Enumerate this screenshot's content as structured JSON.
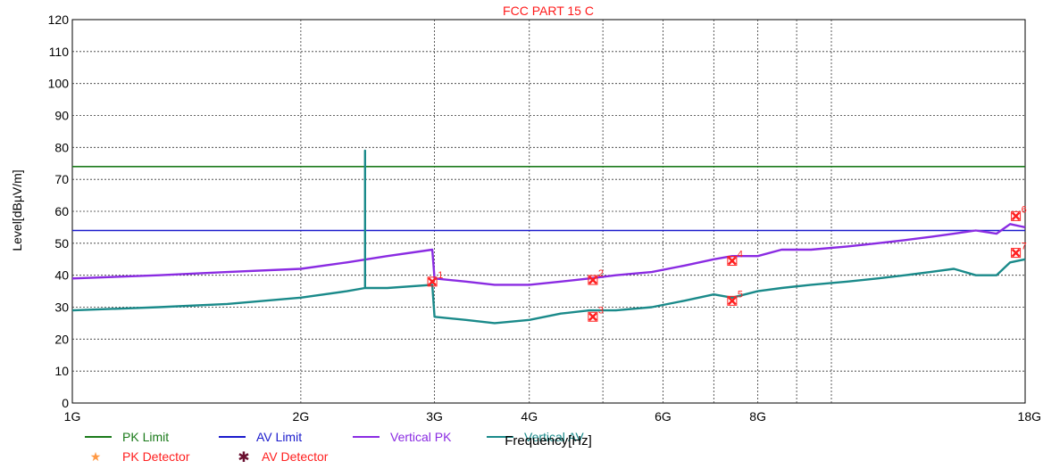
{
  "chart_data": {
    "type": "line",
    "title": "FCC PART 15 C",
    "title_color": "#ff1a1a",
    "xlabel": "Frequency[Hz]",
    "ylabel": "Level[dBµV/m]",
    "x_scale": "log",
    "xlim": [
      1,
      18
    ],
    "ylim": [
      0,
      120
    ],
    "y_ticks": [
      0,
      10,
      20,
      30,
      40,
      50,
      60,
      70,
      80,
      90,
      100,
      110,
      120
    ],
    "x_ticks": [
      {
        "value": 1,
        "label": "1G"
      },
      {
        "value": 2,
        "label": "2G"
      },
      {
        "value": 3,
        "label": "3G"
      },
      {
        "value": 4,
        "label": "4G"
      },
      {
        "value": 6,
        "label": "6G"
      },
      {
        "value": 8,
        "label": "8G"
      },
      {
        "value": 18,
        "label": "18G"
      }
    ],
    "x_gridlines": [
      2,
      3,
      4,
      5,
      6,
      7,
      8,
      9,
      10,
      18
    ],
    "grid": true,
    "series": [
      {
        "name": "PK Limit",
        "color": "#1a7a1a",
        "x": [
          1,
          18
        ],
        "values": [
          74,
          74
        ]
      },
      {
        "name": "AV Limit",
        "color": "#1a1acc",
        "x": [
          1,
          18
        ],
        "values": [
          54,
          54
        ]
      },
      {
        "name": "Vertical PK",
        "color": "#8a2be2",
        "x": [
          1,
          1.3,
          1.6,
          2.0,
          2.3,
          2.6,
          2.98,
          3.0,
          3.3,
          3.6,
          4.0,
          4.4,
          4.8,
          5.2,
          5.8,
          6.4,
          7.0,
          7.4,
          8.0,
          8.6,
          9.4,
          10.5,
          11.5,
          12.5,
          13.5,
          14.5,
          15.5,
          16.5,
          17.2,
          18
        ],
        "values": [
          39,
          40,
          41,
          42,
          44,
          46,
          48,
          39,
          38,
          37,
          37,
          38,
          39,
          40,
          41,
          43,
          45,
          46,
          46,
          48,
          48,
          49,
          50,
          51,
          52,
          53,
          54,
          53,
          56,
          55
        ]
      },
      {
        "name": "Vertical AV",
        "color": "#1a8a8a",
        "x": [
          1,
          1.3,
          1.6,
          2.0,
          2.3,
          2.43,
          2.43,
          2.43,
          2.6,
          2.98,
          3.0,
          3.3,
          3.6,
          4.0,
          4.4,
          4.8,
          5.2,
          5.8,
          6.4,
          7.0,
          7.4,
          8.0,
          8.6,
          9.4,
          10.5,
          11.5,
          12.5,
          13.5,
          14.5,
          15.5,
          16.5,
          17.2,
          18
        ],
        "values": [
          29,
          30,
          31,
          33,
          35,
          36,
          79,
          36,
          36,
          37,
          27,
          26,
          25,
          26,
          28,
          29,
          29,
          30,
          32,
          34,
          33,
          35,
          36,
          37,
          38,
          39,
          40,
          41,
          42,
          40,
          40,
          44,
          45
        ]
      }
    ],
    "markers": [
      {
        "label": "1",
        "x": 2.98,
        "y": 38
      },
      {
        "label": "2",
        "x": 4.85,
        "y": 38.5
      },
      {
        "label": "3",
        "x": 4.85,
        "y": 27
      },
      {
        "label": "4",
        "x": 7.4,
        "y": 44.5
      },
      {
        "label": "5",
        "x": 7.4,
        "y": 32
      },
      {
        "label": "6",
        "x": 17.5,
        "y": 58.5
      },
      {
        "label": "7",
        "x": 17.5,
        "y": 47
      }
    ],
    "marker_color": "#ff2020",
    "legend_placement": "bottom-left",
    "legend": [
      {
        "label": "PK Limit",
        "symbol": "line",
        "color": "#1a7a1a",
        "text_color": "#1a7a1a"
      },
      {
        "label": "AV Limit",
        "symbol": "line",
        "color": "#1a1acc",
        "text_color": "#1a1acc"
      },
      {
        "label": "Vertical PK",
        "symbol": "line",
        "color": "#8a2be2",
        "text_color": "#8a2be2"
      },
      {
        "label": "Vertical AV",
        "symbol": "line",
        "color": "#1a8a8a",
        "text_color": "#1a8a8a"
      },
      {
        "label": "PK Detector",
        "symbol": "star",
        "color": "#ff9944",
        "text_color": "#ff2020"
      },
      {
        "label": "AV Detector",
        "symbol": "asterisk",
        "color": "#6a1030",
        "text_color": "#ff2020"
      }
    ]
  }
}
